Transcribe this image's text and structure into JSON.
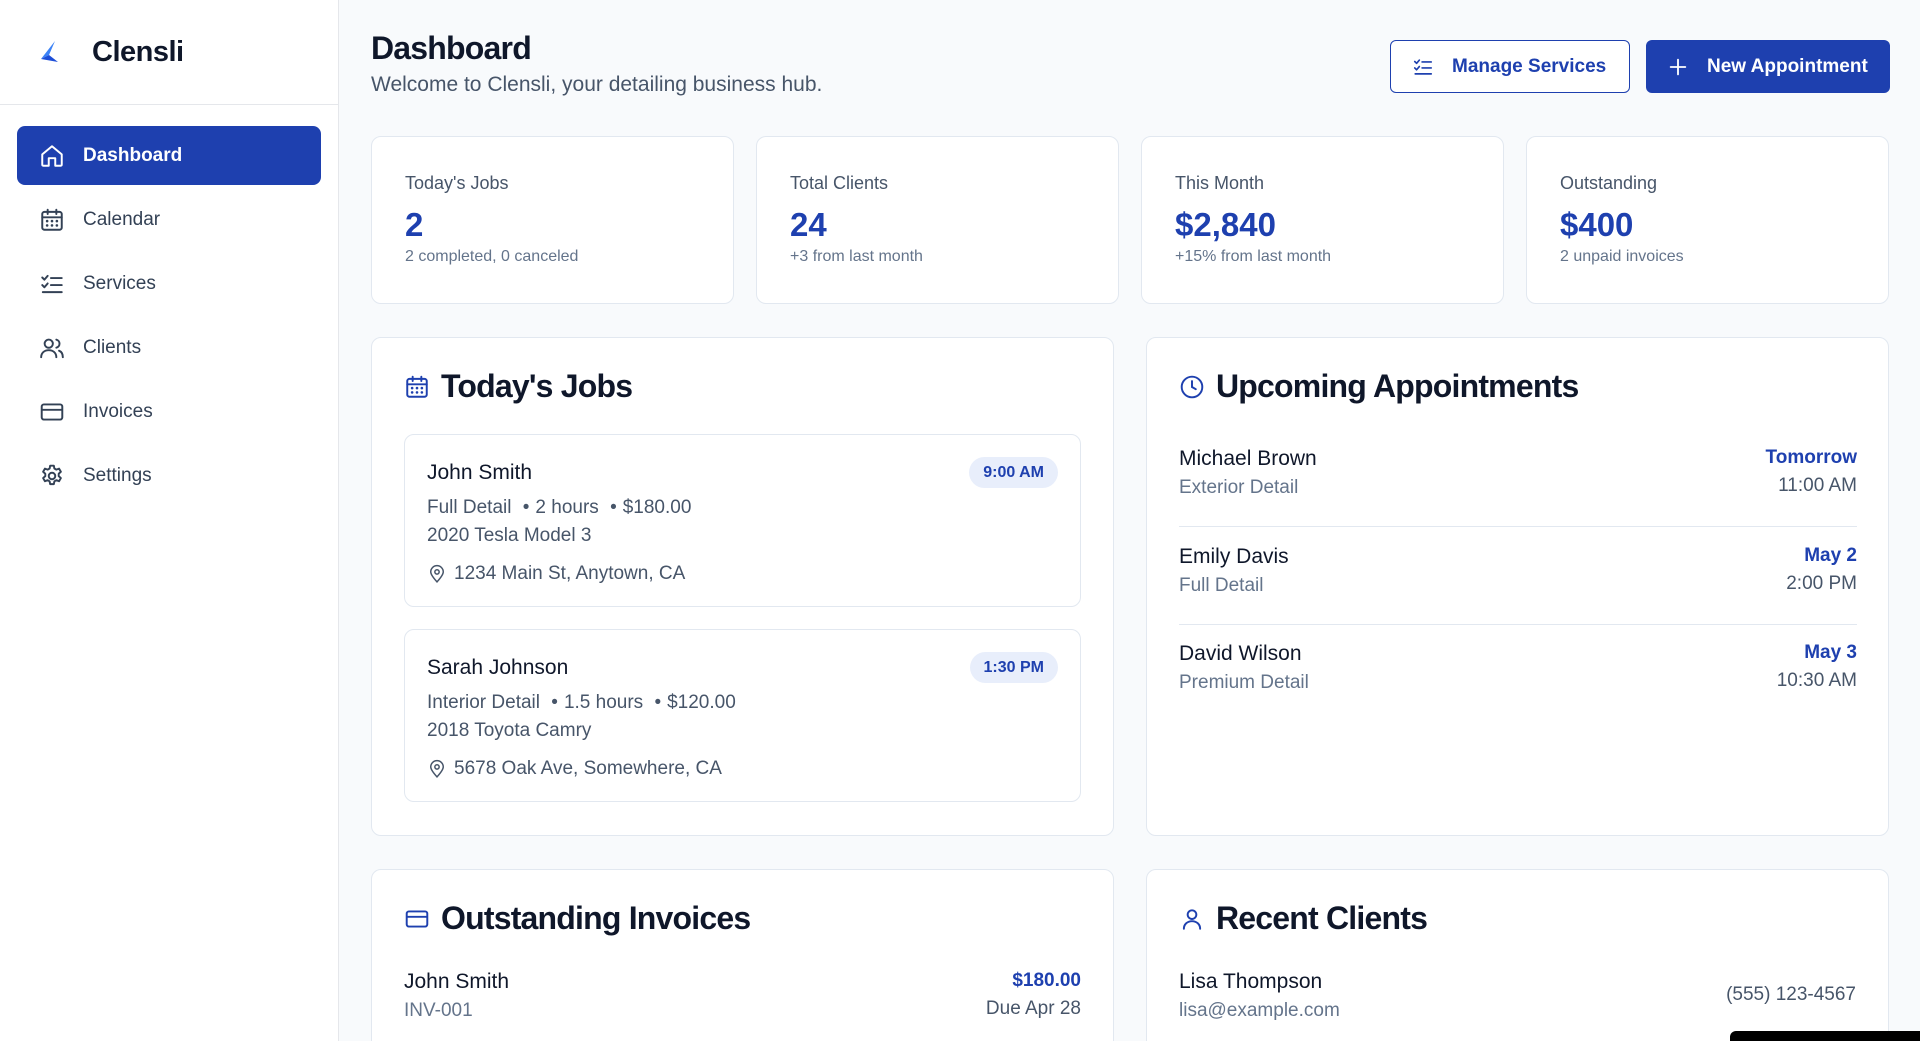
{
  "brand": {
    "name": "Clensli"
  },
  "nav": [
    {
      "label": "Dashboard",
      "icon": "home-icon",
      "active": true
    },
    {
      "label": "Calendar",
      "icon": "calendar-icon"
    },
    {
      "label": "Services",
      "icon": "list-check-icon"
    },
    {
      "label": "Clients",
      "icon": "users-icon"
    },
    {
      "label": "Invoices",
      "icon": "credit-card-icon"
    },
    {
      "label": "Settings",
      "icon": "gear-icon"
    }
  ],
  "header": {
    "title": "Dashboard",
    "subtitle": "Welcome to Clensli, your detailing business hub.",
    "manage_label": "Manage Services",
    "new_label": "New Appointment"
  },
  "stats": [
    {
      "label": "Today's Jobs",
      "value": "2",
      "sub": "2 completed, 0 canceled"
    },
    {
      "label": "Total Clients",
      "value": "24",
      "sub": "+3 from last month"
    },
    {
      "label": "This Month",
      "value": "$2,840",
      "sub": "+15% from last month"
    },
    {
      "label": "Outstanding",
      "value": "$400",
      "sub": "2 unpaid invoices"
    }
  ],
  "todays_jobs": {
    "title": "Today's Jobs",
    "jobs": [
      {
        "name": "John Smith",
        "service": "Full Detail",
        "duration": "2 hours",
        "price": "$180.00",
        "vehicle": "2020 Tesla Model 3",
        "address": "1234 Main St, Anytown, CA",
        "time": "9:00 AM"
      },
      {
        "name": "Sarah Johnson",
        "service": "Interior Detail",
        "duration": "1.5 hours",
        "price": "$120.00",
        "vehicle": "2018 Toyota Camry",
        "address": "5678 Oak Ave, Somewhere, CA",
        "time": "1:30 PM"
      }
    ]
  },
  "upcoming": {
    "title": "Upcoming Appointments",
    "items": [
      {
        "name": "Michael Brown",
        "service": "Exterior Detail",
        "date": "Tomorrow",
        "time": "11:00 AM"
      },
      {
        "name": "Emily Davis",
        "service": "Full Detail",
        "date": "May 2",
        "time": "2:00 PM"
      },
      {
        "name": "David Wilson",
        "service": "Premium Detail",
        "date": "May 3",
        "time": "10:30 AM"
      }
    ]
  },
  "invoices": {
    "title": "Outstanding Invoices",
    "items": [
      {
        "name": "John Smith",
        "number": "INV-001",
        "amount": "$180.00",
        "due": "Due Apr 28"
      }
    ]
  },
  "recent_clients": {
    "title": "Recent Clients",
    "items": [
      {
        "name": "Lisa Thompson",
        "email": "lisa@example.com",
        "phone": "(555) 123-4567"
      }
    ]
  },
  "colors": {
    "accent": "#1e40af",
    "logo": "#3b82f6"
  }
}
